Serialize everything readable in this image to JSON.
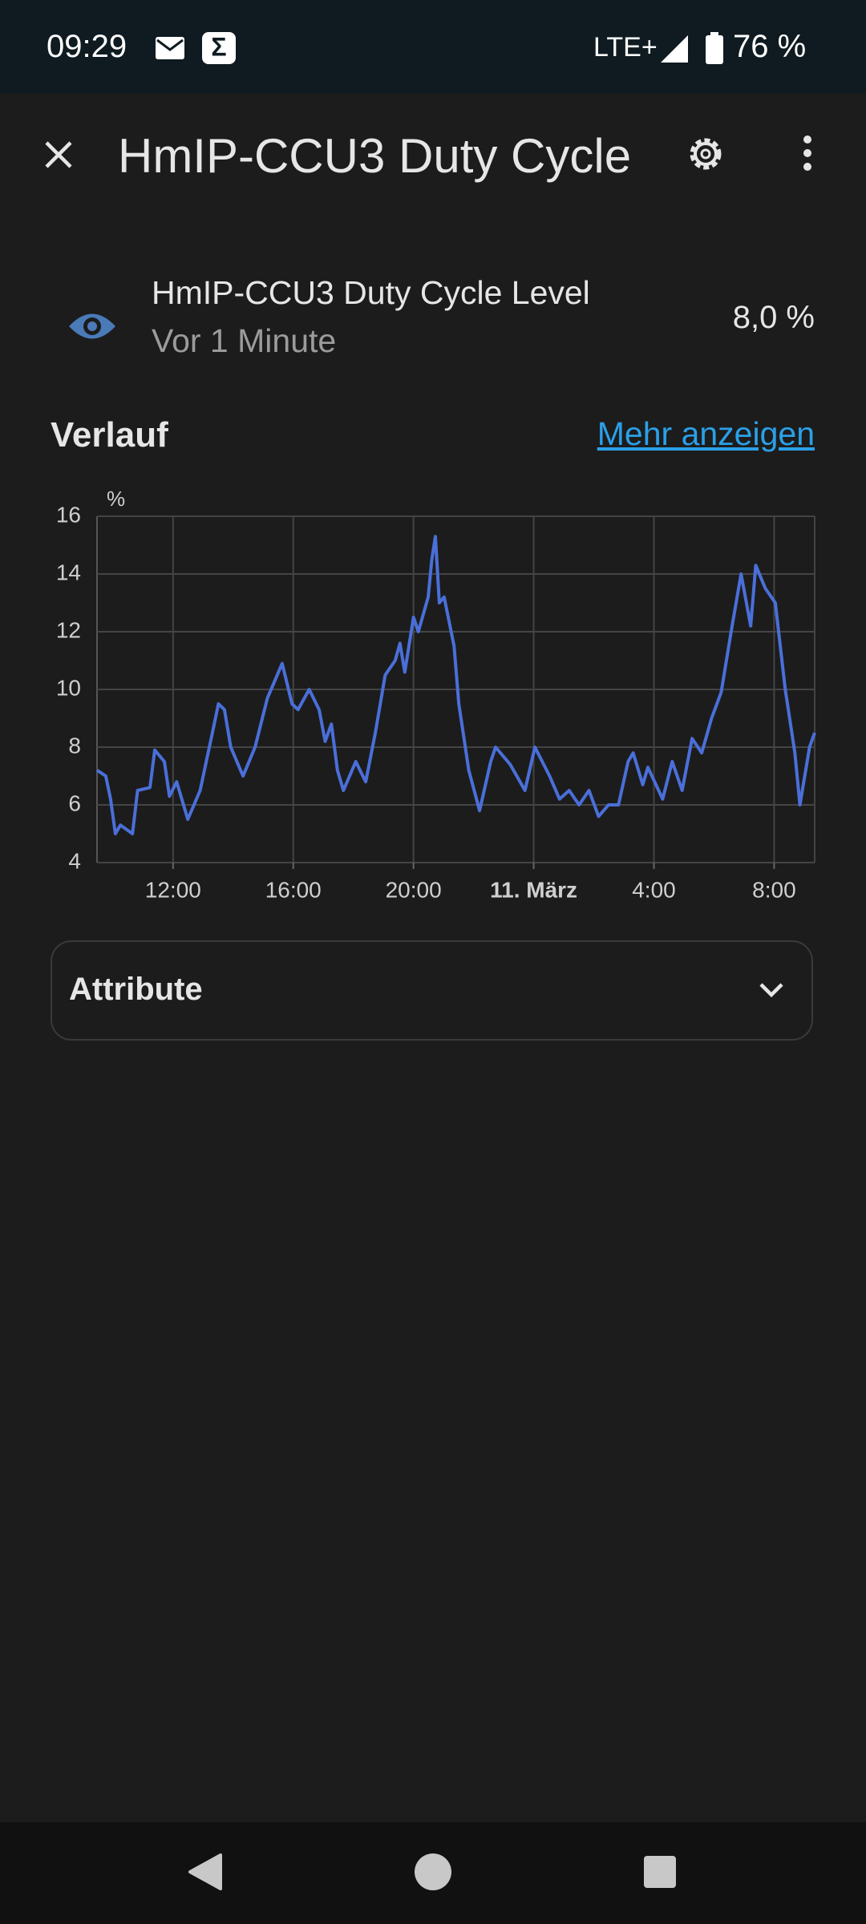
{
  "status_bar": {
    "time": "09:29",
    "network": "LTE+",
    "battery": "76 %"
  },
  "header": {
    "title": "HmIP-CCU3 Duty Cycle"
  },
  "entity": {
    "name": "HmIP-CCU3 Duty Cycle Level",
    "last_changed": "Vor 1 Minute",
    "state": "8,0 %"
  },
  "history": {
    "title": "Verlauf",
    "link": "Mehr anzeigen"
  },
  "chart_data": {
    "type": "line",
    "ylabel": "%",
    "color": "#4a6fd9",
    "grid": true,
    "xlim": [
      9.47,
      33.35
    ],
    "xticks": [
      {
        "value": 12,
        "label": "12:00"
      },
      {
        "value": 16,
        "label": "16:00"
      },
      {
        "value": 20,
        "label": "20:00"
      },
      {
        "value": 24,
        "label": "11. März"
      },
      {
        "value": 28,
        "label": "4:00"
      },
      {
        "value": 32,
        "label": "8:00"
      }
    ],
    "ylim": [
      4,
      16
    ],
    "yticks": [
      4,
      6,
      8,
      10,
      12,
      14,
      16
    ],
    "x": [
      9.47,
      9.76,
      9.92,
      10.08,
      10.25,
      10.65,
      10.82,
      11.23,
      11.39,
      11.71,
      11.88,
      12.12,
      12.49,
      12.9,
      13.31,
      13.51,
      13.71,
      13.92,
      14.33,
      14.73,
      15.14,
      15.63,
      15.96,
      16.16,
      16.53,
      16.86,
      17.06,
      17.27,
      17.47,
      17.67,
      18.08,
      18.41,
      18.73,
      19.06,
      19.39,
      19.55,
      19.71,
      20.0,
      20.16,
      20.49,
      20.61,
      20.73,
      20.86,
      21.02,
      21.35,
      21.51,
      21.84,
      22.2,
      22.57,
      22.73,
      23.22,
      23.71,
      24.04,
      24.53,
      24.86,
      25.18,
      25.51,
      25.84,
      26.16,
      26.49,
      26.82,
      27.14,
      27.31,
      27.63,
      27.8,
      28.29,
      28.61,
      28.94,
      29.27,
      29.59,
      29.92,
      30.24,
      30.57,
      30.9,
      31.22,
      31.39,
      31.71,
      32.04,
      32.37,
      32.69,
      32.86,
      33.18,
      33.35
    ],
    "values": [
      7.2,
      7.0,
      6.2,
      5.0,
      5.3,
      5.0,
      6.5,
      6.6,
      7.9,
      7.5,
      6.3,
      6.8,
      5.5,
      6.5,
      8.5,
      9.5,
      9.3,
      8.0,
      7.0,
      8.0,
      9.7,
      10.9,
      9.5,
      9.3,
      10.0,
      9.3,
      8.2,
      8.8,
      7.2,
      6.5,
      7.5,
      6.8,
      8.5,
      10.5,
      11.0,
      11.6,
      10.6,
      12.5,
      12.0,
      13.2,
      14.5,
      15.3,
      13.0,
      13.2,
      11.5,
      9.5,
      7.2,
      5.8,
      7.5,
      8.0,
      7.4,
      6.5,
      8.0,
      7.0,
      6.2,
      6.5,
      6.0,
      6.5,
      5.6,
      6.0,
      6.0,
      7.5,
      7.8,
      6.7,
      7.3,
      6.2,
      7.5,
      6.5,
      8.3,
      7.8,
      9.0,
      9.9,
      12.0,
      14.0,
      12.2,
      14.3,
      13.5,
      13.0,
      10.0,
      7.8,
      6.0,
      8.0,
      8.5
    ]
  },
  "attributes": {
    "title": "Attribute"
  }
}
